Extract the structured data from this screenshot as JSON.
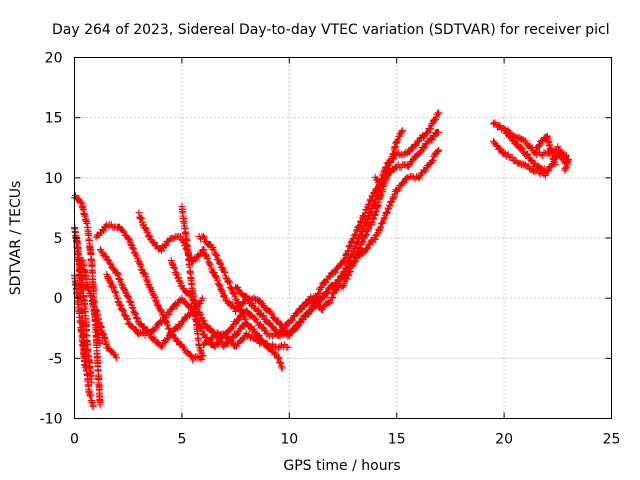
{
  "chart_data": {
    "type": "scatter",
    "title": "Day 264 of 2023, Sidereal Day-to-day VTEC variation (SDTVAR) for receiver picl",
    "xlabel": "GPS time / hours",
    "ylabel": "SDTVAR / TECUs",
    "xlim": [
      0,
      25
    ],
    "ylim": [
      -10,
      20
    ],
    "xticks": [
      0,
      5,
      10,
      15,
      20,
      25
    ],
    "yticks": [
      -10,
      -5,
      0,
      5,
      10,
      15,
      20
    ],
    "grid": true,
    "marker": "plus",
    "color": "#ff0000",
    "tracks": [
      [
        [
          0,
          8.5
        ],
        [
          0.3,
          8
        ],
        [
          0.6,
          6
        ],
        [
          0.8,
          3
        ],
        [
          0.9,
          0
        ],
        [
          1.0,
          -3
        ],
        [
          1.1,
          -6
        ],
        [
          1.2,
          -9
        ]
      ],
      [
        [
          0,
          6
        ],
        [
          0.2,
          3
        ],
        [
          0.3,
          0
        ],
        [
          0.4,
          -3
        ],
        [
          0.5,
          -5
        ],
        [
          0.7,
          -8
        ],
        [
          0.9,
          -9
        ]
      ],
      [
        [
          0.1,
          5
        ],
        [
          0.3,
          2
        ],
        [
          0.5,
          -1
        ],
        [
          0.6,
          -4
        ],
        [
          0.8,
          -7
        ]
      ],
      [
        [
          0,
          2
        ],
        [
          0.2,
          -1
        ],
        [
          0.4,
          -4
        ],
        [
          0.5,
          -6
        ]
      ],
      [
        [
          0.4,
          3
        ],
        [
          0.6,
          1
        ],
        [
          0.8,
          0
        ],
        [
          1.0,
          -2
        ],
        [
          1.2,
          -4
        ]
      ],
      [
        [
          1.0,
          5
        ],
        [
          1.5,
          6
        ],
        [
          2.0,
          6
        ],
        [
          2.5,
          5
        ],
        [
          3.0,
          3
        ],
        [
          3.5,
          1
        ],
        [
          4.0,
          -1
        ],
        [
          4.5,
          -3
        ],
        [
          5.0,
          -4
        ],
        [
          5.5,
          -5
        ],
        [
          6.0,
          -5
        ]
      ],
      [
        [
          1.2,
          4
        ],
        [
          1.6,
          3
        ],
        [
          2.0,
          2
        ],
        [
          2.5,
          0
        ],
        [
          3.0,
          -2
        ],
        [
          3.5,
          -3
        ],
        [
          4.0,
          -4
        ],
        [
          4.5,
          -3
        ],
        [
          5.0,
          -2
        ],
        [
          5.5,
          -1
        ],
        [
          6.0,
          0
        ]
      ],
      [
        [
          1.5,
          2
        ],
        [
          2.0,
          0
        ],
        [
          2.5,
          -2
        ],
        [
          3.0,
          -3
        ],
        [
          3.5,
          -3
        ],
        [
          4.0,
          -2
        ],
        [
          4.5,
          -1
        ],
        [
          5.0,
          0
        ],
        [
          5.5,
          -1
        ],
        [
          6.0,
          -3
        ],
        [
          6.5,
          -4
        ],
        [
          7.0,
          -3
        ],
        [
          7.5,
          -2
        ],
        [
          8.0,
          -1
        ],
        [
          8.5,
          -2
        ],
        [
          9.0,
          -3
        ],
        [
          9.5,
          -3
        ],
        [
          10.0,
          -2
        ]
      ],
      [
        [
          1.0,
          -1
        ],
        [
          1.5,
          -4
        ],
        [
          2.0,
          -5
        ]
      ],
      [
        [
          3.0,
          7
        ],
        [
          3.5,
          5
        ],
        [
          4.0,
          4
        ],
        [
          4.5,
          5
        ],
        [
          5.0,
          5
        ],
        [
          5.5,
          3
        ],
        [
          6.0,
          4
        ],
        [
          6.5,
          2
        ],
        [
          7.0,
          0
        ],
        [
          7.5,
          -1
        ],
        [
          8.0,
          0
        ],
        [
          8.5,
          -1
        ],
        [
          9.0,
          -2
        ],
        [
          9.5,
          -3
        ],
        [
          10.0,
          -3
        ],
        [
          10.5,
          -2
        ]
      ],
      [
        [
          4.5,
          3
        ],
        [
          5.0,
          1
        ],
        [
          5.5,
          0
        ],
        [
          6.0,
          -2
        ],
        [
          6.5,
          -3
        ],
        [
          7.0,
          -3
        ],
        [
          7.5,
          -4
        ],
        [
          8.0,
          -3
        ],
        [
          8.5,
          -3.5
        ],
        [
          9.0,
          -4
        ],
        [
          9.5,
          -4
        ],
        [
          10.0,
          -4
        ]
      ],
      [
        [
          5.0,
          7.5
        ],
        [
          5.2,
          5
        ],
        [
          5.4,
          2
        ],
        [
          5.6,
          -1
        ],
        [
          5.8,
          -4
        ],
        [
          6.0,
          -5
        ]
      ],
      [
        [
          5.8,
          5
        ],
        [
          6.0,
          5
        ],
        [
          6.5,
          4
        ],
        [
          7.0,
          2
        ],
        [
          7.5,
          0
        ],
        [
          8.0,
          -2
        ],
        [
          8.5,
          -3
        ],
        [
          9.0,
          -4
        ],
        [
          9.5,
          -5
        ],
        [
          9.7,
          -6
        ]
      ],
      [
        [
          6.0,
          -4
        ],
        [
          6.5,
          -3
        ],
        [
          7.0,
          -4
        ],
        [
          7.5,
          -3
        ],
        [
          8.0,
          -2
        ]
      ],
      [
        [
          7.5,
          1
        ],
        [
          8.0,
          0
        ],
        [
          8.5,
          0
        ],
        [
          9.0,
          -1
        ],
        [
          9.5,
          -2
        ],
        [
          10.0,
          -3
        ],
        [
          10.5,
          -2
        ],
        [
          11.0,
          -1
        ],
        [
          11.5,
          0
        ],
        [
          12.0,
          1
        ],
        [
          12.5,
          1
        ],
        [
          13.0,
          3
        ],
        [
          13.5,
          5
        ],
        [
          14.0,
          7
        ],
        [
          14.5,
          10
        ],
        [
          15.0,
          13
        ],
        [
          15.3,
          14
        ]
      ],
      [
        [
          9.5,
          -3
        ],
        [
          10.0,
          -2
        ],
        [
          10.5,
          -1
        ],
        [
          11.0,
          0
        ],
        [
          11.5,
          -1
        ],
        [
          12.0,
          0
        ],
        [
          12.5,
          2
        ],
        [
          13.0,
          4
        ],
        [
          13.5,
          6
        ],
        [
          14.0,
          8
        ],
        [
          14.5,
          11
        ],
        [
          15.0,
          12
        ],
        [
          15.5,
          12
        ],
        [
          16.0,
          13
        ],
        [
          16.5,
          14
        ],
        [
          17.0,
          15.5
        ]
      ],
      [
        [
          10.0,
          -3
        ],
        [
          10.5,
          -2
        ],
        [
          11.0,
          -1
        ],
        [
          11.5,
          1
        ],
        [
          12.0,
          2
        ],
        [
          12.5,
          3
        ],
        [
          13.0,
          5
        ],
        [
          13.5,
          7
        ],
        [
          14.0,
          9
        ],
        [
          14.5,
          10
        ],
        [
          15.0,
          11
        ],
        [
          15.5,
          11
        ],
        [
          16.0,
          12
        ],
        [
          16.5,
          13
        ],
        [
          17.0,
          14
        ]
      ],
      [
        [
          10.5,
          -1
        ],
        [
          11.0,
          0
        ],
        [
          11.5,
          0
        ],
        [
          12.0,
          1
        ],
        [
          12.5,
          2
        ],
        [
          13.0,
          3
        ],
        [
          13.5,
          4
        ],
        [
          14.0,
          5
        ],
        [
          14.5,
          7
        ],
        [
          15.0,
          9
        ],
        [
          15.5,
          10
        ],
        [
          16.0,
          10
        ],
        [
          16.5,
          11
        ],
        [
          17.0,
          12.5
        ]
      ],
      [
        [
          14.0,
          10
        ],
        [
          14.3,
          9.5
        ],
        [
          14.6,
          10.5
        ]
      ],
      [
        [
          19.5,
          14.5
        ],
        [
          20.0,
          14
        ],
        [
          20.5,
          13
        ],
        [
          21.0,
          12
        ],
        [
          21.5,
          11
        ],
        [
          22.0,
          10.5
        ],
        [
          22.5,
          12
        ],
        [
          23.0,
          11
        ]
      ],
      [
        [
          19.5,
          13
        ],
        [
          20.0,
          12
        ],
        [
          20.5,
          11.5
        ],
        [
          21.0,
          11
        ],
        [
          21.5,
          10.5
        ],
        [
          22.0,
          10.2
        ]
      ],
      [
        [
          20.0,
          14
        ],
        [
          20.5,
          13.5
        ],
        [
          21.0,
          13
        ],
        [
          21.5,
          12
        ],
        [
          22.0,
          12
        ],
        [
          22.5,
          12.5
        ],
        [
          23.0,
          11.5
        ],
        [
          22.8,
          10.5
        ]
      ],
      [
        [
          21.5,
          12.5
        ],
        [
          22.0,
          13.5
        ],
        [
          22.2,
          12
        ],
        [
          22.4,
          11
        ]
      ]
    ]
  }
}
